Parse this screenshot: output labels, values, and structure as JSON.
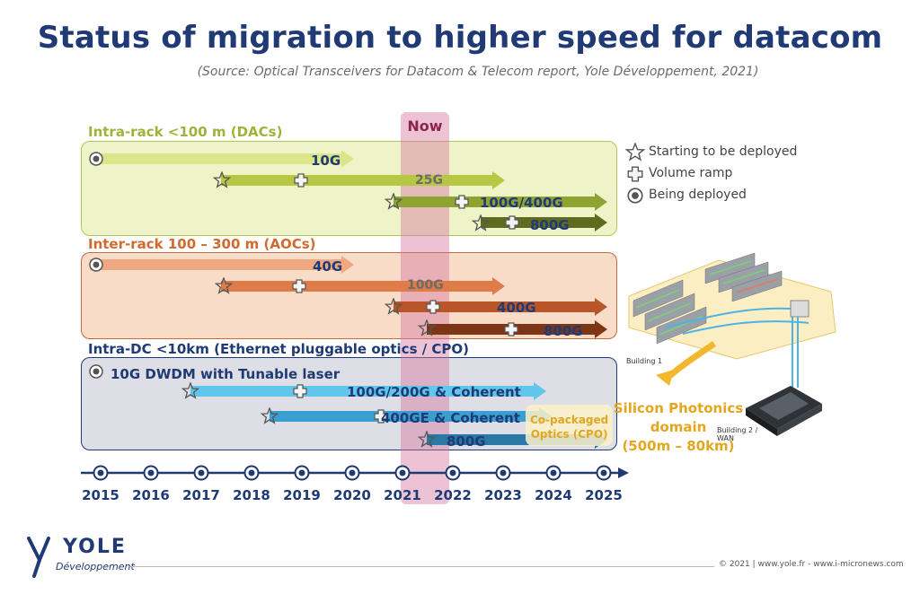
{
  "title": "Status of migration to higher speed for datacom",
  "subtitle": "(Source: Optical Transceivers for Datacom & Telecom report, Yole Développement, 2021)",
  "now_label": "Now",
  "sections": [
    {
      "label": "Intra-rack <100 m (DACs)",
      "color": "#9db33a",
      "arrows": [
        {
          "label": "10G",
          "start": 2015,
          "end": 2020,
          "marks": [
            {
              "type": "being",
              "year": 2015
            }
          ]
        },
        {
          "label": "25G",
          "start": 2017.3,
          "end": 2023,
          "marks": [
            {
              "type": "star",
              "year": 2017.3
            },
            {
              "type": "ramp",
              "year": 2019
            }
          ]
        },
        {
          "label": "100G/400G",
          "start": 2020.8,
          "end": 2025,
          "marks": [
            {
              "type": "star",
              "year": 2020.8
            },
            {
              "type": "ramp",
              "year": 2022.2
            }
          ]
        },
        {
          "label": "800G",
          "start": 2022.5,
          "end": 2025,
          "marks": [
            {
              "type": "star",
              "year": 2022.5
            },
            {
              "type": "ramp",
              "year": 2023
            }
          ]
        }
      ]
    },
    {
      "label": "Inter-rack 100 – 300 m (AOCs)",
      "color": "#d26a2e",
      "arrows": [
        {
          "label": "40G",
          "start": 2015,
          "end": 2020,
          "marks": [
            {
              "type": "being",
              "year": 2015
            }
          ]
        },
        {
          "label": "100G",
          "start": 2017.3,
          "end": 2023,
          "marks": [
            {
              "type": "star",
              "year": 2017.3
            },
            {
              "type": "ramp",
              "year": 2019
            }
          ]
        },
        {
          "label": "400G",
          "start": 2020.8,
          "end": 2025,
          "marks": [
            {
              "type": "star",
              "year": 2020.8
            },
            {
              "type": "ramp",
              "year": 2021.6
            }
          ]
        },
        {
          "label": "800G",
          "start": 2021.4,
          "end": 2025,
          "marks": [
            {
              "type": "star",
              "year": 2021.4
            },
            {
              "type": "ramp",
              "year": 2023
            }
          ]
        }
      ]
    },
    {
      "label": "Intra-DC <10km (Ethernet pluggable optics / CPO)",
      "color": "#1f3a74",
      "arrows": [
        {
          "label": "10G DWDM with Tunable laser",
          "start": 2015,
          "end": 2015,
          "marks": [
            {
              "type": "being",
              "year": 2015
            }
          ]
        },
        {
          "label": "100G/200G & Coherent",
          "start": 2016.8,
          "end": 2024,
          "marks": [
            {
              "type": "star",
              "year": 2016.8
            },
            {
              "type": "ramp",
              "year": 2019
            }
          ]
        },
        {
          "label": "400GE & Coherent",
          "start": 2018.3,
          "end": 2024,
          "marks": [
            {
              "type": "star",
              "year": 2018.3
            },
            {
              "type": "ramp",
              "year": 2020.5
            }
          ]
        },
        {
          "label": "800G",
          "start": 2021.4,
          "end": 2025,
          "marks": [
            {
              "type": "star",
              "year": 2021.4
            }
          ]
        }
      ]
    }
  ],
  "legend": [
    {
      "icon": "star",
      "label": "Starting to be deployed"
    },
    {
      "icon": "ramp",
      "label": "Volume ramp"
    },
    {
      "icon": "being",
      "label": "Being deployed"
    }
  ],
  "cpo_label": {
    "line1": "Co-packaged",
    "line2": "Optics (CPO)"
  },
  "timeline_years": [
    "2015",
    "2016",
    "2017",
    "2018",
    "2019",
    "2020",
    "2021",
    "2022",
    "2023",
    "2024",
    "2025"
  ],
  "sip": {
    "line1": "Silicon Photonics",
    "line2": "domain",
    "line3": "(500m – 80km)"
  },
  "building1": "Building 1",
  "building2": {
    "line1": "Building 2 /",
    "line2": "WAN"
  },
  "logo": {
    "main": "YOLE",
    "sub": "Développement"
  },
  "footer": "© 2021 | www.yole.fr - www.i-micronews.com"
}
